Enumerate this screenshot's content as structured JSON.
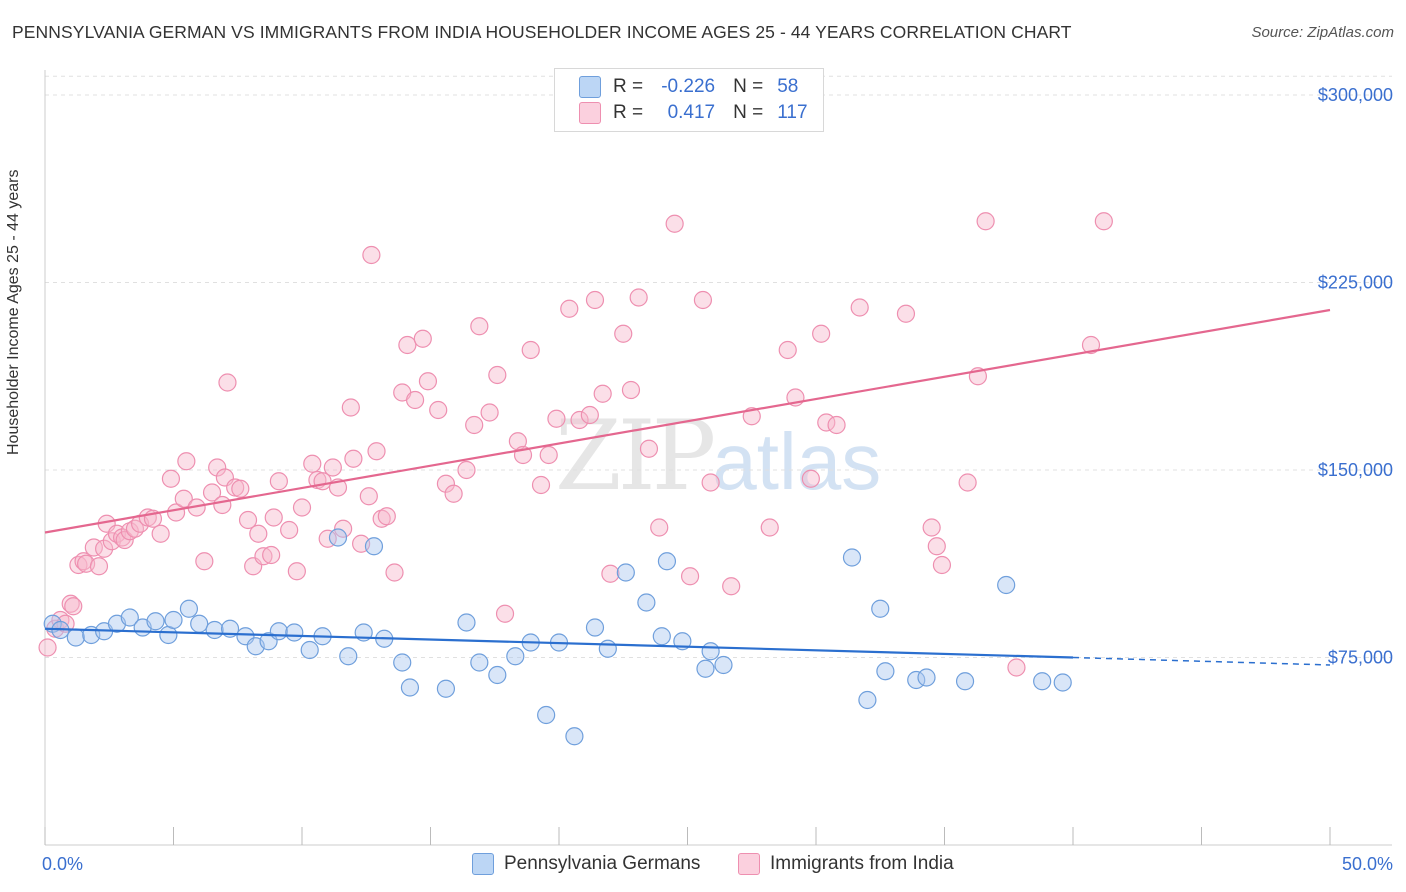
{
  "title": "PENNSYLVANIA GERMAN VS IMMIGRANTS FROM INDIA HOUSEHOLDER INCOME AGES 25 - 44 YEARS CORRELATION CHART",
  "source": "Source: ZipAtlas.com",
  "watermark": {
    "zip": "ZIP",
    "atlas": "atlas"
  },
  "legend_top": {
    "rows": [
      {
        "r_label": "R =",
        "r_value": "-0.226",
        "n_label": "N =",
        "n_value": "58"
      },
      {
        "r_label": "R =",
        "r_value": "0.417",
        "n_label": "N =",
        "n_value": "117"
      }
    ]
  },
  "colors": {
    "blue_fill": "#aac8f0",
    "blue_stroke": "#6f9fdc",
    "blue_line": "#2b6fcf",
    "pink_fill": "#f6b8cc",
    "pink_stroke": "#ee8fb0",
    "pink_line": "#e4678f",
    "axis_text": "#3a6fcf"
  },
  "chart_data": {
    "type": "scatter",
    "title": "PENNSYLVANIA GERMAN VS IMMIGRANTS FROM INDIA HOUSEHOLDER INCOME AGES 25 - 44 YEARS CORRELATION CHART",
    "xlabel": "",
    "ylabel": "Householder Income Ages 25 - 44 years",
    "xlim": [
      0,
      50
    ],
    "ylim": [
      0,
      310000
    ],
    "x_tick_labels": [
      "0.0%",
      "50.0%"
    ],
    "y_ticks": [
      75000,
      150000,
      225000,
      300000
    ],
    "y_tick_labels": [
      "$75,000",
      "$150,000",
      "$225,000",
      "$300,000"
    ],
    "grid": true,
    "legend_position": "bottom",
    "series": [
      {
        "name": "Pennsylvania Germans",
        "R": -0.226,
        "N": 58,
        "trend": {
          "x": [
            0,
            40
          ],
          "y": [
            86500,
            75000
          ],
          "dashed_to_x": 50,
          "dashed_to_y": 72000
        },
        "points": [
          [
            0.3,
            88500
          ],
          [
            0.6,
            86000
          ],
          [
            1.2,
            83000
          ],
          [
            1.8,
            84000
          ],
          [
            2.3,
            85500
          ],
          [
            2.8,
            88500
          ],
          [
            3.3,
            91000
          ],
          [
            3.8,
            87000
          ],
          [
            4.3,
            89500
          ],
          [
            4.8,
            84000
          ],
          [
            5.0,
            90000
          ],
          [
            5.6,
            94500
          ],
          [
            6.0,
            88500
          ],
          [
            6.6,
            86000
          ],
          [
            7.2,
            86500
          ],
          [
            7.8,
            83500
          ],
          [
            8.2,
            79500
          ],
          [
            8.7,
            81500
          ],
          [
            9.1,
            85500
          ],
          [
            9.7,
            85000
          ],
          [
            10.3,
            78000
          ],
          [
            10.8,
            83500
          ],
          [
            11.4,
            123000
          ],
          [
            11.8,
            75500
          ],
          [
            12.4,
            85000
          ],
          [
            12.8,
            119500
          ],
          [
            13.2,
            82500
          ],
          [
            13.9,
            73000
          ],
          [
            14.2,
            63000
          ],
          [
            15.6,
            62500
          ],
          [
            16.4,
            89000
          ],
          [
            16.9,
            73000
          ],
          [
            17.6,
            68000
          ],
          [
            18.3,
            75500
          ],
          [
            18.9,
            81000
          ],
          [
            19.5,
            52000
          ],
          [
            20.0,
            81000
          ],
          [
            20.6,
            43500
          ],
          [
            21.4,
            87000
          ],
          [
            21.9,
            78500
          ],
          [
            22.6,
            109000
          ],
          [
            23.4,
            97000
          ],
          [
            24.0,
            83500
          ],
          [
            24.2,
            113500
          ],
          [
            24.8,
            81500
          ],
          [
            25.7,
            70500
          ],
          [
            25.9,
            77500
          ],
          [
            26.4,
            72000
          ],
          [
            31.4,
            115000
          ],
          [
            32.0,
            58000
          ],
          [
            32.5,
            94500
          ],
          [
            32.7,
            69500
          ],
          [
            33.9,
            66000
          ],
          [
            34.3,
            67000
          ],
          [
            35.8,
            65500
          ],
          [
            37.4,
            104000
          ],
          [
            38.8,
            65500
          ],
          [
            39.6,
            65000
          ]
        ]
      },
      {
        "name": "Immigrants from India",
        "R": 0.417,
        "N": 117,
        "trend": {
          "x": [
            0,
            50
          ],
          "y": [
            125000,
            214000
          ]
        },
        "points": [
          [
            0.1,
            79000
          ],
          [
            0.4,
            86500
          ],
          [
            0.6,
            90000
          ],
          [
            0.8,
            88500
          ],
          [
            1.0,
            96500
          ],
          [
            1.1,
            95500
          ],
          [
            1.3,
            112000
          ],
          [
            1.5,
            113500
          ],
          [
            1.6,
            112500
          ],
          [
            1.9,
            119000
          ],
          [
            2.1,
            111500
          ],
          [
            2.3,
            118500
          ],
          [
            2.4,
            128500
          ],
          [
            2.6,
            121500
          ],
          [
            2.8,
            124500
          ],
          [
            3.0,
            123000
          ],
          [
            3.1,
            122000
          ],
          [
            3.3,
            125500
          ],
          [
            3.5,
            126500
          ],
          [
            3.7,
            128500
          ],
          [
            4.0,
            131000
          ],
          [
            4.2,
            130500
          ],
          [
            4.5,
            124500
          ],
          [
            4.9,
            146500
          ],
          [
            5.1,
            133000
          ],
          [
            5.4,
            138500
          ],
          [
            5.5,
            153500
          ],
          [
            5.9,
            135000
          ],
          [
            6.2,
            113500
          ],
          [
            6.5,
            141000
          ],
          [
            6.7,
            151000
          ],
          [
            6.9,
            136000
          ],
          [
            7.0,
            147000
          ],
          [
            7.4,
            143000
          ],
          [
            7.6,
            142500
          ],
          [
            7.9,
            130000
          ],
          [
            8.1,
            111500
          ],
          [
            8.3,
            124500
          ],
          [
            8.5,
            115500
          ],
          [
            8.8,
            116000
          ],
          [
            8.9,
            131000
          ],
          [
            9.1,
            145500
          ],
          [
            9.5,
            126000
          ],
          [
            9.8,
            109500
          ],
          [
            10.0,
            135000
          ],
          [
            10.4,
            152500
          ],
          [
            10.6,
            146000
          ],
          [
            10.8,
            145500
          ],
          [
            11.0,
            122500
          ],
          [
            11.2,
            151000
          ],
          [
            11.4,
            143000
          ],
          [
            11.6,
            126500
          ],
          [
            11.9,
            175000
          ],
          [
            12.0,
            154500
          ],
          [
            12.3,
            120500
          ],
          [
            12.6,
            139500
          ],
          [
            12.9,
            157500
          ],
          [
            13.1,
            130500
          ],
          [
            13.3,
            131500
          ],
          [
            13.6,
            109000
          ],
          [
            13.9,
            181000
          ],
          [
            14.1,
            200000
          ],
          [
            14.4,
            178000
          ],
          [
            14.7,
            202500
          ],
          [
            14.9,
            185500
          ],
          [
            15.3,
            174000
          ],
          [
            15.6,
            144500
          ],
          [
            15.9,
            140500
          ],
          [
            16.4,
            150000
          ],
          [
            16.7,
            168000
          ],
          [
            16.9,
            207500
          ],
          [
            17.3,
            173000
          ],
          [
            17.6,
            188000
          ],
          [
            17.9,
            92500
          ],
          [
            18.4,
            161500
          ],
          [
            18.6,
            156000
          ],
          [
            18.9,
            198000
          ],
          [
            19.3,
            144000
          ],
          [
            19.6,
            156000
          ],
          [
            19.9,
            170500
          ],
          [
            20.4,
            214500
          ],
          [
            20.8,
            170000
          ],
          [
            21.2,
            172000
          ],
          [
            21.4,
            218000
          ],
          [
            21.7,
            180500
          ],
          [
            22.0,
            108500
          ],
          [
            22.5,
            204500
          ],
          [
            22.8,
            182000
          ],
          [
            23.1,
            219000
          ],
          [
            23.5,
            158500
          ],
          [
            23.9,
            127000
          ],
          [
            24.5,
            248500
          ],
          [
            25.1,
            107500
          ],
          [
            25.6,
            218000
          ],
          [
            25.9,
            145000
          ],
          [
            26.7,
            103500
          ],
          [
            27.5,
            171500
          ],
          [
            28.2,
            127000
          ],
          [
            28.9,
            198000
          ],
          [
            29.2,
            179000
          ],
          [
            29.8,
            146500
          ],
          [
            30.2,
            204500
          ],
          [
            30.4,
            169000
          ],
          [
            30.8,
            168000
          ],
          [
            31.7,
            215000
          ],
          [
            33.5,
            212500
          ],
          [
            34.5,
            127000
          ],
          [
            34.7,
            119500
          ],
          [
            34.9,
            112000
          ],
          [
            35.9,
            145000
          ],
          [
            36.3,
            187500
          ],
          [
            36.6,
            249500
          ],
          [
            37.8,
            71000
          ],
          [
            40.7,
            200000
          ],
          [
            41.2,
            249500
          ],
          [
            7.1,
            185000
          ],
          [
            12.7,
            236000
          ]
        ]
      }
    ]
  },
  "axis_labels": {
    "ylabel": "Householder Income Ages 25 - 44 years",
    "x_left": "0.0%",
    "x_right": "50.0%",
    "y": [
      "$75,000",
      "$150,000",
      "$225,000",
      "$300,000"
    ]
  },
  "legend_bottom": [
    "Pennsylvania Germans",
    "Immigrants from India"
  ]
}
